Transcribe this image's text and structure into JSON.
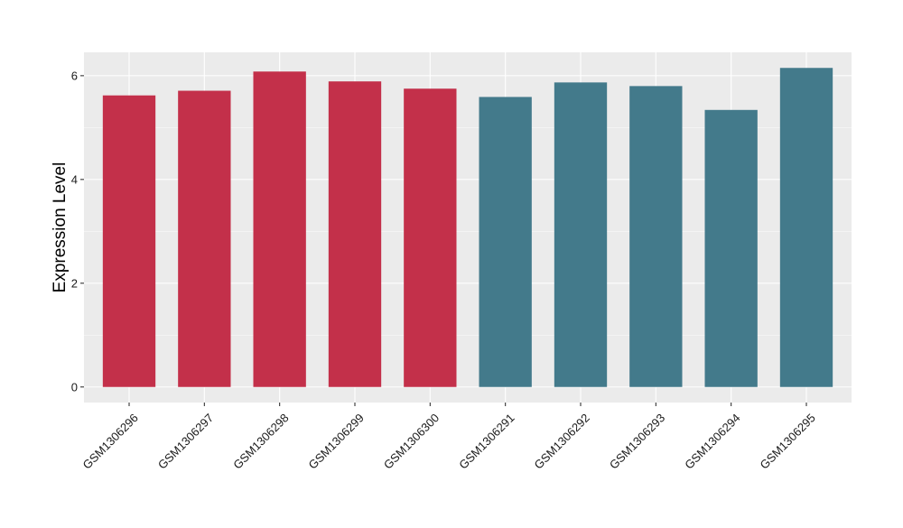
{
  "chart_data": {
    "type": "bar",
    "title": "",
    "xlabel": "",
    "ylabel": "Expression Level",
    "ylim": [
      -0.3,
      6.45
    ],
    "yticks": [
      0,
      2,
      4,
      6
    ],
    "ytick_labels": [
      "0",
      "2",
      "4",
      "6"
    ],
    "grid": true,
    "legend": "none",
    "categories": [
      "GSM1306296",
      "GSM1306297",
      "GSM1306298",
      "GSM1306299",
      "GSM1306300",
      "GSM1306291",
      "GSM1306292",
      "GSM1306293",
      "GSM1306294",
      "GSM1306295"
    ],
    "values": [
      5.62,
      5.71,
      6.08,
      5.89,
      5.75,
      5.59,
      5.87,
      5.8,
      5.34,
      6.15
    ],
    "colors": [
      "#C3304A",
      "#C3304A",
      "#C3304A",
      "#C3304A",
      "#C3304A",
      "#437A8B",
      "#437A8B",
      "#437A8B",
      "#437A8B",
      "#437A8B"
    ]
  },
  "colors": {
    "panel_background": "#EBEBEB",
    "grid": "#FFFFFF",
    "group_a": "#C3304A",
    "group_b": "#437A8B"
  }
}
